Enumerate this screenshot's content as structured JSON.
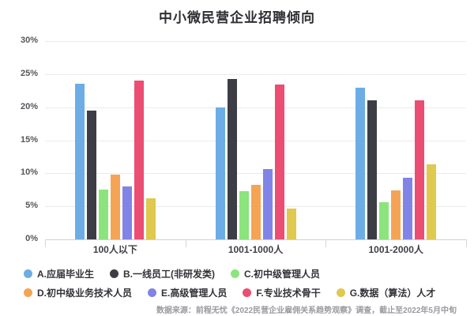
{
  "title": "中小微民营企业招聘倾向",
  "chart_data": {
    "type": "bar",
    "title": "中小微民营企业招聘倾向",
    "categories": [
      "100人以下",
      "1001-1000人",
      "1001-2000人"
    ],
    "series": [
      {
        "name": "A.应届毕业生",
        "color": "#6CADE6",
        "values": [
          23.5,
          20.0,
          23.0
        ]
      },
      {
        "name": "B.一线员工(非研发类)",
        "color": "#3D3D46",
        "values": [
          19.5,
          24.3,
          21.0
        ]
      },
      {
        "name": "C.初中级管理人员",
        "color": "#8BE47C",
        "values": [
          7.5,
          7.3,
          5.6
        ]
      },
      {
        "name": "D.初中级业务技术人员",
        "color": "#F5A456",
        "values": [
          9.8,
          8.2,
          7.4
        ]
      },
      {
        "name": "E.高级管理人员",
        "color": "#8084E6",
        "values": [
          8.0,
          10.6,
          9.3
        ]
      },
      {
        "name": "F.专业技术骨干",
        "color": "#EB4D73",
        "values": [
          24.0,
          23.4,
          21.0
        ]
      },
      {
        "name": "G.数据（算法）人才",
        "color": "#DFC94F",
        "values": [
          6.2,
          4.7,
          11.3
        ]
      }
    ],
    "xlabel": "",
    "ylabel": "",
    "ylim": [
      0,
      30
    ],
    "y_tick_step": 5,
    "y_tick_labels": [
      "0%",
      "5%",
      "10%",
      "15%",
      "20%",
      "25%",
      "30%"
    ],
    "grid": true,
    "legend_position": "bottom",
    "legend_rows": [
      [
        0,
        1,
        2
      ],
      [
        3,
        4,
        5,
        6
      ]
    ]
  },
  "footer": {
    "source": "数据来源：前程无忧《2022民营企业雇佣关系趋势观察》调查，截止至2022年5月中旬"
  }
}
